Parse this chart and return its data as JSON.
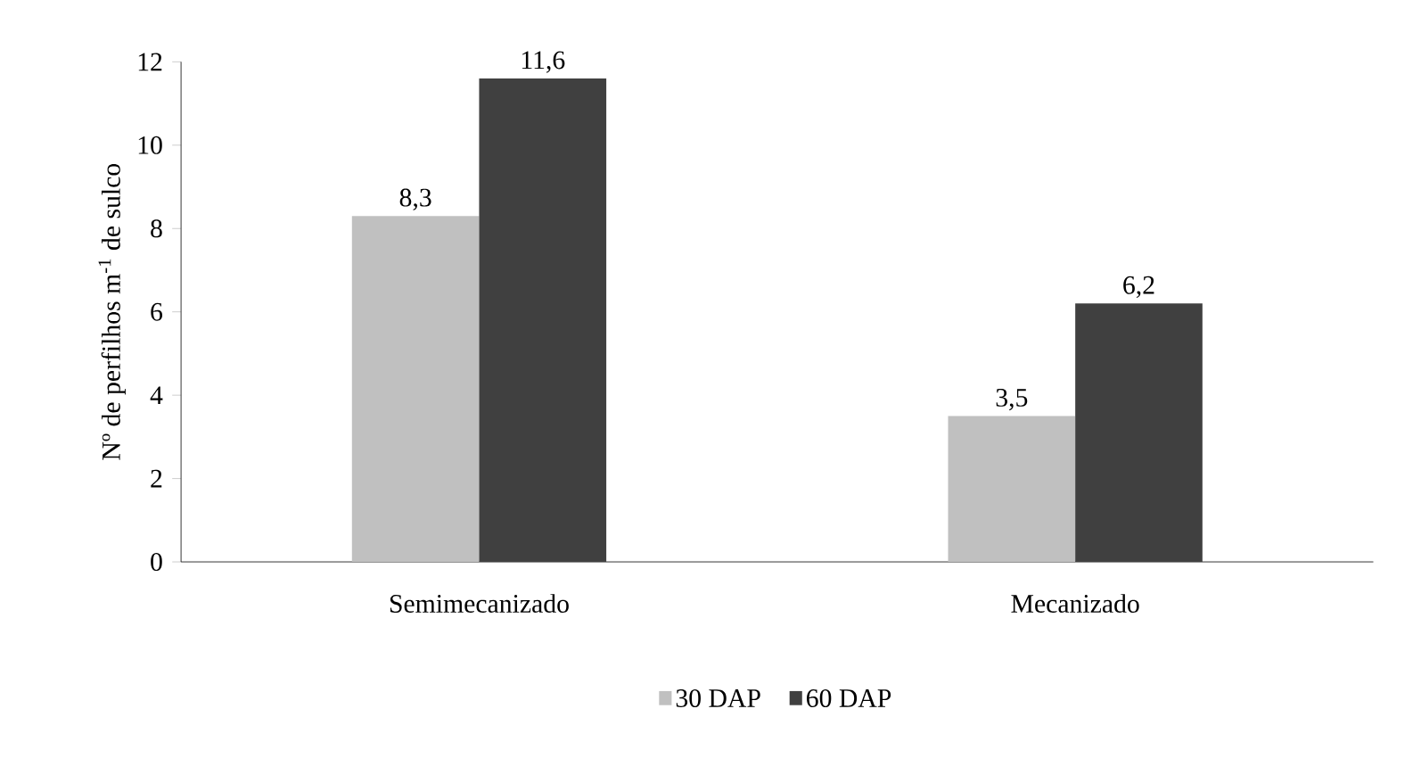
{
  "chart_data": {
    "type": "bar",
    "ylabel": "Nº de perfilhos  m$^{-1}$ de sulco",
    "categories": [
      "Semimecanizado",
      "Mecanizado"
    ],
    "series": [
      {
        "name": "30 DAP",
        "color": "#c0c0c0",
        "values": [
          8.3,
          3.5
        ],
        "value_labels": [
          "8,3",
          "3,5"
        ]
      },
      {
        "name": "60 DAP",
        "color": "#404040",
        "values": [
          11.6,
          6.2
        ],
        "value_labels": [
          "11,6",
          "6,2"
        ]
      }
    ],
    "ylim": [
      0,
      12
    ],
    "yticks": [
      0,
      2,
      4,
      6,
      8,
      10,
      12
    ],
    "grid": false,
    "legend": "bottom"
  }
}
